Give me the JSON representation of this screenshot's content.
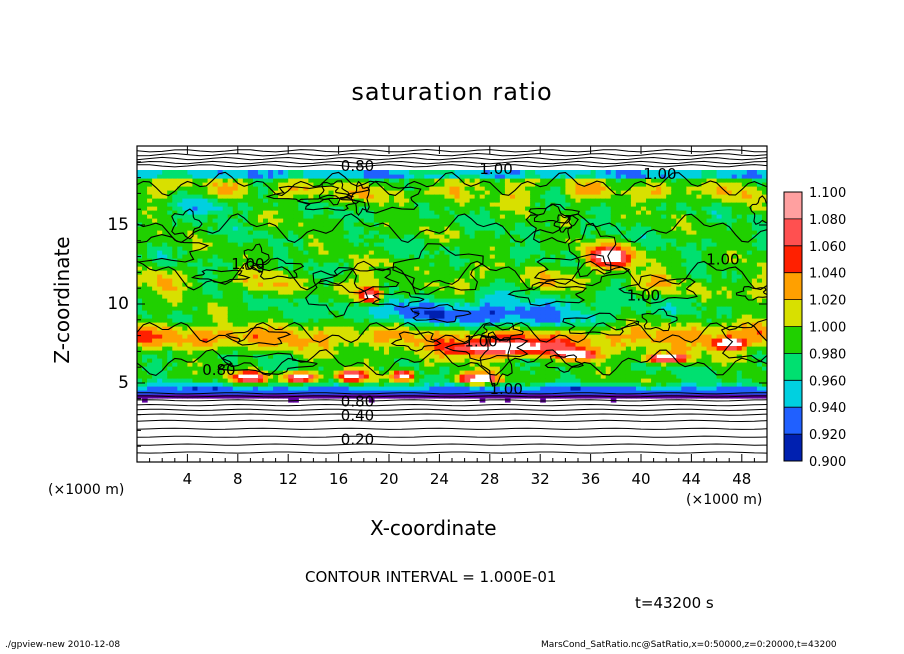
{
  "chart_data": {
    "type": "heatmap",
    "title": "saturation ratio",
    "xlabel": "X-coordinate",
    "ylabel": "Z-coordinate",
    "x_unit": "(×1000 m)",
    "z_unit": "(×1000 m)",
    "xlim": [
      0,
      50
    ],
    "ylim": [
      0,
      20
    ],
    "x_ticks": [
      "4",
      "8",
      "12",
      "16",
      "20",
      "24",
      "28",
      "32",
      "36",
      "40",
      "44",
      "48"
    ],
    "x_tick_values": [
      4,
      8,
      12,
      16,
      20,
      24,
      28,
      32,
      36,
      40,
      44,
      48
    ],
    "y_ticks": [
      "5",
      "10",
      "15"
    ],
    "y_tick_values": [
      5,
      10,
      15
    ],
    "colorbar": {
      "levels": [
        "1.100",
        "1.080",
        "1.060",
        "1.040",
        "1.020",
        "1.000",
        "0.980",
        "0.960",
        "0.940",
        "0.920",
        "0.900"
      ],
      "colors": [
        "#ffa0a0",
        "#ff5050",
        "#ff2000",
        "#ffa000",
        "#d8e000",
        "#20d000",
        "#00e070",
        "#00d0e0",
        "#2060ff",
        "#0020b0",
        "#6000a0"
      ]
    },
    "contour_labels": [
      {
        "text": "0.80",
        "x": 17.5,
        "z": 18.7
      },
      {
        "text": "1.00",
        "x": 28.5,
        "z": 18.5
      },
      {
        "text": "1.00",
        "x": 41.5,
        "z": 18.2
      },
      {
        "text": "1.00",
        "x": 8.8,
        "z": 12.5
      },
      {
        "text": "1.00",
        "x": 46.5,
        "z": 12.8
      },
      {
        "text": "1.00",
        "x": 40.2,
        "z": 10.5
      },
      {
        "text": "1.00",
        "x": 27.3,
        "z": 7.6
      },
      {
        "text": "0.80",
        "x": 6.5,
        "z": 5.8
      },
      {
        "text": "1.00",
        "x": 29.3,
        "z": 4.6
      },
      {
        "text": "0.80",
        "x": 17.5,
        "z": 3.8
      },
      {
        "text": "0.40",
        "x": 17.5,
        "z": 2.9
      },
      {
        "text": "0.20",
        "x": 17.5,
        "z": 1.4
      }
    ],
    "contour_interval": "CONTOUR INTERVAL = 1.000E-01",
    "time": "t=43200 s"
  },
  "footer": {
    "left": "./gpview-new   2010-12-08",
    "right": "MarsCond_SatRatio.nc@SatRatio,x=0:50000,z=0:20000,t=43200"
  }
}
